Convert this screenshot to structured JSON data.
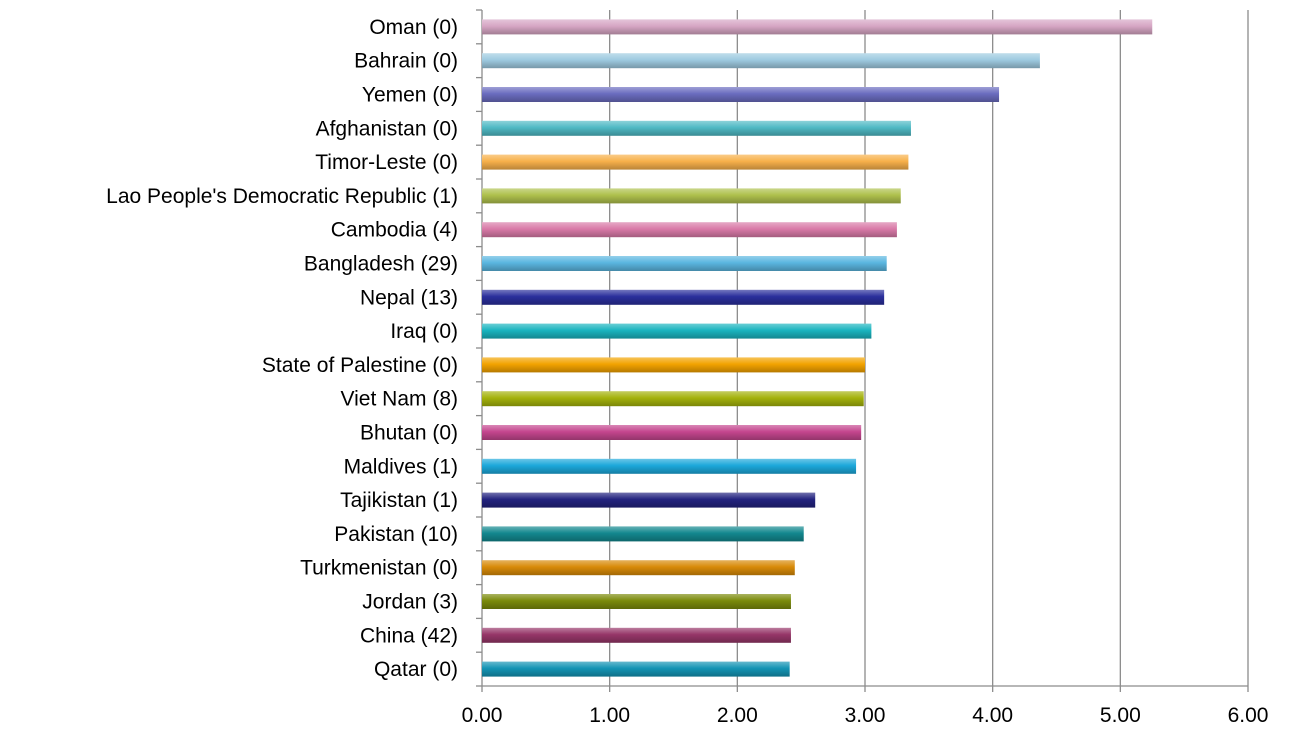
{
  "chart_data": {
    "type": "bar",
    "orientation": "horizontal",
    "categories": [
      "Oman (0)",
      "Bahrain (0)",
      "Yemen (0)",
      "Afghanistan (0)",
      "Timor-Leste (0)",
      "Lao People's Democratic Republic (1)",
      "Cambodia (4)",
      "Bangladesh (29)",
      "Nepal (13)",
      "Iraq (0)",
      "State of Palestine (0)",
      "Viet Nam (8)",
      "Bhutan (0)",
      "Maldives (1)",
      "Tajikistan (1)",
      "Pakistan (10)",
      "Turkmenistan (0)",
      "Jordan (3)",
      "China (42)",
      "Qatar (0)"
    ],
    "values": [
      5.25,
      4.37,
      4.05,
      3.36,
      3.34,
      3.28,
      3.25,
      3.17,
      3.15,
      3.05,
      3.0,
      2.99,
      2.97,
      2.93,
      2.61,
      2.52,
      2.45,
      2.42,
      2.42,
      2.41
    ],
    "colors": [
      "#d6a6c4",
      "#9ecae0",
      "#6a6cbf",
      "#4fb9c4",
      "#f7b04a",
      "#aec04c",
      "#d97aa8",
      "#5ab6e0",
      "#2a2f9c",
      "#19b4bf",
      "#f2a300",
      "#a4b20c",
      "#c4468e",
      "#1ca8da",
      "#23237f",
      "#13888f",
      "#d88a08",
      "#7a8a0b",
      "#963668",
      "#1494b4"
    ],
    "xlim": [
      0,
      6
    ],
    "xticks": [
      "0.00",
      "1.00",
      "2.00",
      "3.00",
      "4.00",
      "5.00",
      "6.00"
    ],
    "title": "",
    "xlabel": "",
    "ylabel": "",
    "grid": "vertical",
    "legend": "none"
  }
}
